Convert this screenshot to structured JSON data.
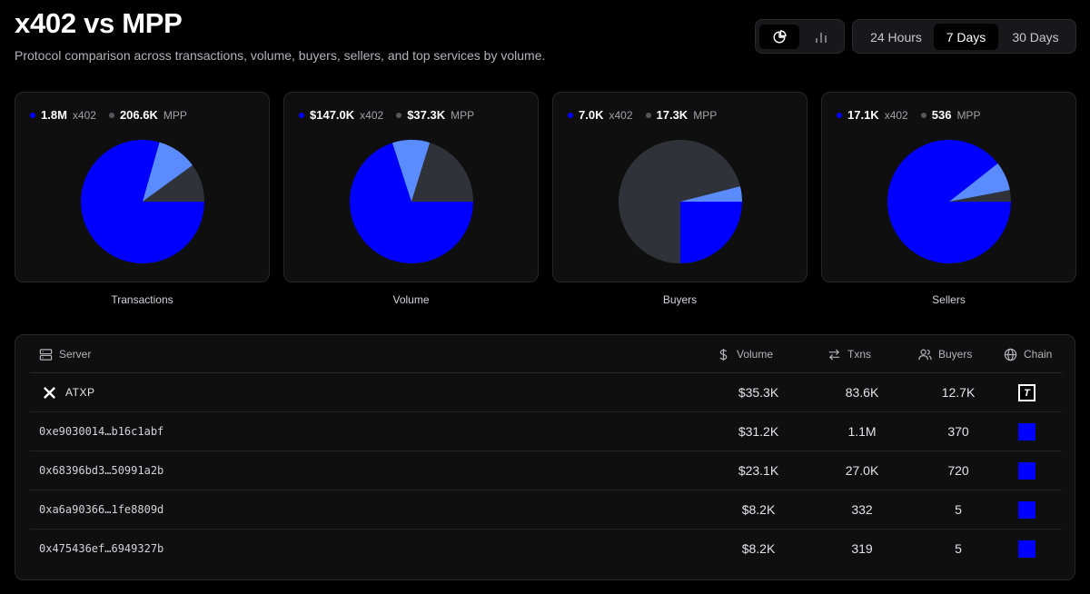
{
  "header": {
    "title": "x402 vs MPP",
    "subtitle": "Protocol comparison across transactions, volume, buyers, sellers, and top services by volume."
  },
  "view_toggle": {
    "active": "pie-chart-icon",
    "options": [
      "pie-chart-icon",
      "bar-chart-icon"
    ]
  },
  "time_range": {
    "options": [
      "24 Hours",
      "7 Days",
      "30 Days"
    ],
    "selected": "7 Days"
  },
  "colors": {
    "x402": "#0000ff",
    "mpp": "#2f3238",
    "highlight": "#5b8cff",
    "card_bg": "#0f0f10"
  },
  "chart_data": [
    {
      "type": "pie",
      "title": "Transactions",
      "legend": [
        {
          "value": "1.8M",
          "name": "x402"
        },
        {
          "value": "206.6K",
          "name": "MPP"
        }
      ],
      "slices": [
        {
          "label": "x402",
          "value": 0.794
        },
        {
          "label": "x402 (selected)",
          "value": 0.106
        },
        {
          "label": "MPP",
          "value": 0.1
        }
      ]
    },
    {
      "type": "pie",
      "title": "Volume",
      "legend": [
        {
          "value": "$147.0K",
          "name": "x402"
        },
        {
          "value": "$37.3K",
          "name": "MPP"
        }
      ],
      "slices": [
        {
          "label": "x402",
          "value": 0.7
        },
        {
          "label": "x402 (selected)",
          "value": 0.098
        },
        {
          "label": "MPP",
          "value": 0.202
        }
      ]
    },
    {
      "type": "pie",
      "title": "Buyers",
      "legend": [
        {
          "value": "7.0K",
          "name": "x402"
        },
        {
          "value": "17.3K",
          "name": "MPP"
        }
      ],
      "slices": [
        {
          "label": "x402",
          "value": 0.25
        },
        {
          "label": "MPP",
          "value": 0.71
        },
        {
          "label": "x402 (selected)",
          "value": 0.04
        }
      ]
    },
    {
      "type": "pie",
      "title": "Sellers",
      "legend": [
        {
          "value": "17.1K",
          "name": "x402"
        },
        {
          "value": "536",
          "name": "MPP"
        }
      ],
      "slices": [
        {
          "label": "x402",
          "value": 0.894
        },
        {
          "label": "x402 (selected)",
          "value": 0.076
        },
        {
          "label": "MPP",
          "value": 0.03
        }
      ]
    }
  ],
  "table": {
    "columns": {
      "server": "Server",
      "volume": "Volume",
      "txns": "Txns",
      "buyers": "Buyers",
      "chain": "Chain"
    },
    "rows": [
      {
        "server": "ATXP",
        "volume": "$35.3K",
        "txns": "83.6K",
        "buyers": "12.7K",
        "chain_glyph": "T",
        "chain_icon": "tempo-chain-icon",
        "server_icon": "atxp-logo-icon"
      },
      {
        "server": "0xe9030014…b16c1abf",
        "volume": "$31.2K",
        "txns": "1.1M",
        "buyers": "370",
        "chain_icon": "base-chain-icon"
      },
      {
        "server": "0x68396bd3…50991a2b",
        "volume": "$23.1K",
        "txns": "27.0K",
        "buyers": "720",
        "chain_icon": "base-chain-icon"
      },
      {
        "server": "0xa6a90366…1fe8809d",
        "volume": "$8.2K",
        "txns": "332",
        "buyers": "5",
        "chain_icon": "base-chain-icon"
      },
      {
        "server": "0x475436ef…6949327b",
        "volume": "$8.2K",
        "txns": "319",
        "buyers": "5",
        "chain_icon": "base-chain-icon"
      }
    ]
  }
}
